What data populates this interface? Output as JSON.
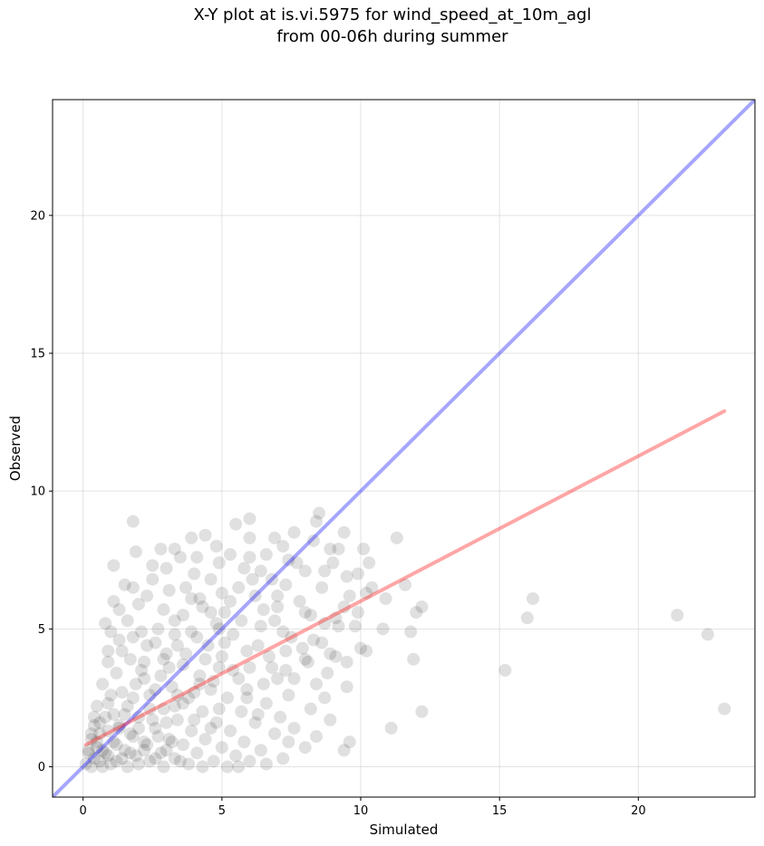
{
  "chart_data": {
    "type": "scatter",
    "title_lines": [
      "X-Y plot at is.vi.5975 for wind_speed_at_10m_agl",
      "from 00-06h during summer"
    ],
    "xlabel": "Simulated",
    "ylabel": "Observed",
    "xlim": [
      -1.1,
      24.2
    ],
    "ylim": [
      -1.1,
      24.2
    ],
    "x_ticks": [
      0,
      5,
      10,
      15,
      20
    ],
    "y_ticks": [
      0,
      5,
      10,
      15,
      20
    ],
    "grid": true,
    "point_color": "#000000",
    "point_alpha": 0.12,
    "series": [
      {
        "type": "scatter",
        "points": [
          [
            1.8,
            8.9
          ],
          [
            8.5,
            9.2
          ],
          [
            6.0,
            9.0
          ],
          [
            5.5,
            8.8
          ],
          [
            4.4,
            8.4
          ],
          [
            3.9,
            8.3
          ],
          [
            7.6,
            8.5
          ],
          [
            9.4,
            8.5
          ],
          [
            6.9,
            8.3
          ],
          [
            8.3,
            8.2
          ],
          [
            8.4,
            8.9
          ],
          [
            7.2,
            8.0
          ],
          [
            8.9,
            7.9
          ],
          [
            9.2,
            7.9
          ],
          [
            10.1,
            7.9
          ],
          [
            3.3,
            7.9
          ],
          [
            2.8,
            7.9
          ],
          [
            1.9,
            7.8
          ],
          [
            5.3,
            7.7
          ],
          [
            6.0,
            7.6
          ],
          [
            6.6,
            7.7
          ],
          [
            3.5,
            7.6
          ],
          [
            7.7,
            7.4
          ],
          [
            9.0,
            7.4
          ],
          [
            10.3,
            7.4
          ],
          [
            11.3,
            8.3
          ],
          [
            1.1,
            7.3
          ],
          [
            4.1,
            7.6
          ],
          [
            4.9,
            7.4
          ],
          [
            3.0,
            7.2
          ],
          [
            5.8,
            7.2
          ],
          [
            8.0,
            7.1
          ],
          [
            9.5,
            6.9
          ],
          [
            9.9,
            7.0
          ],
          [
            2.5,
            6.8
          ],
          [
            4.6,
            6.8
          ],
          [
            6.8,
            6.8
          ],
          [
            7.3,
            6.6
          ],
          [
            1.8,
            6.5
          ],
          [
            3.7,
            6.5
          ],
          [
            5.6,
            6.5
          ],
          [
            8.6,
            6.5
          ],
          [
            9.6,
            6.2
          ],
          [
            10.2,
            6.3
          ],
          [
            11.6,
            6.6
          ],
          [
            1.1,
            6.0
          ],
          [
            2.3,
            6.2
          ],
          [
            4.2,
            6.1
          ],
          [
            6.2,
            6.2
          ],
          [
            7.8,
            6.0
          ],
          [
            9.4,
            5.8
          ],
          [
            10.9,
            6.1
          ],
          [
            12.2,
            5.8
          ],
          [
            16.2,
            6.1
          ],
          [
            1.3,
            5.7
          ],
          [
            2.9,
            5.7
          ],
          [
            5.1,
            5.6
          ],
          [
            6.5,
            5.7
          ],
          [
            8.2,
            5.5
          ],
          [
            9.1,
            5.4
          ],
          [
            12.0,
            5.6
          ],
          [
            16.0,
            5.4
          ],
          [
            21.4,
            5.5
          ],
          [
            0.8,
            5.2
          ],
          [
            1.6,
            5.3
          ],
          [
            3.3,
            5.3
          ],
          [
            4.8,
            5.2
          ],
          [
            6.9,
            5.3
          ],
          [
            8.7,
            5.2
          ],
          [
            9.8,
            5.1
          ],
          [
            10.8,
            5.0
          ],
          [
            11.8,
            4.9
          ],
          [
            22.5,
            4.8
          ],
          [
            1.0,
            4.9
          ],
          [
            2.1,
            4.9
          ],
          [
            3.9,
            4.9
          ],
          [
            5.4,
            4.8
          ],
          [
            7.5,
            4.7
          ],
          [
            8.3,
            4.6
          ],
          [
            10.0,
            4.3
          ],
          [
            10.2,
            4.2
          ],
          [
            2.6,
            4.5
          ],
          [
            4.5,
            4.4
          ],
          [
            6.3,
            4.4
          ],
          [
            7.9,
            4.3
          ],
          [
            8.9,
            4.1
          ],
          [
            9.1,
            4.0
          ],
          [
            1.4,
            4.2
          ],
          [
            3.0,
            4.1
          ],
          [
            5.0,
            4.0
          ],
          [
            6.7,
            4.0
          ],
          [
            8.1,
            3.8
          ],
          [
            9.5,
            3.8
          ],
          [
            11.9,
            3.9
          ],
          [
            0.9,
            3.8
          ],
          [
            2.2,
            3.8
          ],
          [
            3.6,
            3.7
          ],
          [
            4.9,
            3.6
          ],
          [
            6.0,
            3.6
          ],
          [
            7.3,
            3.5
          ],
          [
            8.8,
            3.4
          ],
          [
            15.2,
            3.5
          ],
          [
            1.2,
            3.4
          ],
          [
            2.8,
            3.3
          ],
          [
            4.2,
            3.3
          ],
          [
            5.6,
            3.2
          ],
          [
            7.0,
            3.2
          ],
          [
            8.4,
            3.0
          ],
          [
            9.5,
            2.9
          ],
          [
            0.7,
            3.0
          ],
          [
            1.9,
            3.0
          ],
          [
            3.2,
            2.9
          ],
          [
            4.6,
            2.8
          ],
          [
            5.9,
            2.8
          ],
          [
            7.4,
            2.6
          ],
          [
            8.7,
            2.5
          ],
          [
            1.0,
            2.6
          ],
          [
            2.4,
            2.6
          ],
          [
            3.8,
            2.5
          ],
          [
            5.2,
            2.5
          ],
          [
            6.6,
            2.3
          ],
          [
            8.2,
            2.1
          ],
          [
            0.5,
            2.2
          ],
          [
            1.6,
            2.2
          ],
          [
            2.9,
            2.1
          ],
          [
            4.3,
            2.0
          ],
          [
            5.7,
            2.0
          ],
          [
            7.1,
            1.8
          ],
          [
            12.2,
            2.0
          ],
          [
            23.1,
            2.1
          ],
          [
            0.8,
            1.8
          ],
          [
            2.0,
            1.8
          ],
          [
            3.4,
            1.7
          ],
          [
            4.8,
            1.6
          ],
          [
            6.2,
            1.6
          ],
          [
            7.6,
            1.4
          ],
          [
            8.9,
            1.7
          ],
          [
            0.4,
            1.5
          ],
          [
            1.3,
            1.5
          ],
          [
            2.6,
            1.4
          ],
          [
            3.9,
            1.3
          ],
          [
            5.3,
            1.3
          ],
          [
            6.9,
            1.2
          ],
          [
            8.4,
            1.1
          ],
          [
            11.1,
            1.4
          ],
          [
            0.6,
            1.2
          ],
          [
            1.8,
            1.1
          ],
          [
            3.1,
            1.0
          ],
          [
            4.4,
            1.0
          ],
          [
            5.8,
            0.9
          ],
          [
            7.4,
            0.9
          ],
          [
            9.6,
            0.9
          ],
          [
            0.3,
            1.0
          ],
          [
            1.1,
            0.9
          ],
          [
            2.3,
            0.8
          ],
          [
            3.6,
            0.8
          ],
          [
            5.0,
            0.7
          ],
          [
            6.4,
            0.6
          ],
          [
            8.0,
            0.7
          ],
          [
            9.4,
            0.6
          ],
          [
            0.5,
            0.7
          ],
          [
            1.5,
            0.6
          ],
          [
            2.8,
            0.5
          ],
          [
            4.1,
            0.5
          ],
          [
            5.5,
            0.4
          ],
          [
            7.2,
            0.3
          ],
          [
            0.2,
            0.5
          ],
          [
            0.9,
            0.4
          ],
          [
            1.9,
            0.4
          ],
          [
            3.3,
            0.3
          ],
          [
            4.7,
            0.2
          ],
          [
            6.0,
            0.2
          ],
          [
            0.4,
            0.3
          ],
          [
            1.2,
            0.2
          ],
          [
            2.4,
            0.2
          ],
          [
            3.8,
            0.1
          ],
          [
            5.2,
            0.0
          ],
          [
            6.6,
            0.1
          ],
          [
            0.1,
            0.1
          ],
          [
            0.7,
            0.0
          ],
          [
            1.6,
            0.0
          ],
          [
            2.9,
            0.0
          ],
          [
            4.3,
            0.0
          ],
          [
            5.6,
            0.0
          ],
          [
            0.3,
            0.0
          ],
          [
            1.0,
            0.1
          ],
          [
            2.0,
            0.1
          ],
          [
            3.5,
            0.2
          ],
          [
            0.6,
            0.2
          ],
          [
            1.4,
            0.3
          ],
          [
            2.6,
            0.3
          ],
          [
            0.2,
            0.6
          ],
          [
            0.8,
            0.5
          ],
          [
            1.7,
            0.5
          ],
          [
            3.0,
            0.6
          ],
          [
            0.5,
            0.9
          ],
          [
            1.2,
            0.8
          ],
          [
            2.2,
            0.9
          ],
          [
            0.9,
            1.3
          ],
          [
            1.7,
            1.2
          ],
          [
            2.7,
            1.1
          ],
          [
            0.6,
            1.6
          ],
          [
            1.5,
            1.9
          ],
          [
            2.5,
            1.7
          ],
          [
            3.6,
            2.3
          ],
          [
            4.0,
            2.7
          ],
          [
            4.7,
            3.1
          ],
          [
            5.4,
            3.5
          ],
          [
            3.1,
            3.6
          ],
          [
            2.2,
            3.2
          ],
          [
            1.4,
            2.7
          ],
          [
            0.9,
            2.3
          ],
          [
            3.4,
            4.4
          ],
          [
            4.1,
            4.7
          ],
          [
            4.9,
            5.0
          ],
          [
            5.7,
            5.3
          ],
          [
            2.7,
            5.0
          ],
          [
            3.6,
            5.5
          ],
          [
            4.3,
            5.8
          ],
          [
            5.0,
            6.3
          ],
          [
            2.0,
            5.9
          ],
          [
            3.1,
            6.4
          ],
          [
            4.0,
            7.0
          ],
          [
            2.5,
            7.3
          ],
          [
            1.5,
            6.6
          ],
          [
            6.4,
            7.1
          ],
          [
            7.0,
            6.2
          ],
          [
            6.4,
            5.1
          ],
          [
            7.2,
            4.9
          ],
          [
            5.9,
            4.2
          ],
          [
            6.8,
            3.6
          ],
          [
            4.4,
            3.9
          ],
          [
            5.1,
            4.5
          ],
          [
            3.7,
            4.1
          ],
          [
            2.9,
            3.9
          ],
          [
            2.1,
            3.5
          ],
          [
            1.7,
            3.9
          ],
          [
            2.3,
            4.4
          ],
          [
            3.3,
            4.8
          ],
          [
            4.6,
            5.6
          ],
          [
            5.3,
            6.0
          ],
          [
            6.1,
            6.8
          ],
          [
            3.9,
            6.1
          ],
          [
            1.3,
            4.6
          ],
          [
            0.9,
            4.2
          ],
          [
            1.8,
            4.7
          ],
          [
            2.6,
            2.8
          ],
          [
            3.4,
            2.6
          ],
          [
            4.2,
            3.0
          ],
          [
            1.8,
            2.5
          ],
          [
            1.1,
            1.9
          ],
          [
            0.4,
            1.8
          ],
          [
            2.0,
            1.4
          ],
          [
            3.0,
            1.6
          ],
          [
            4.0,
            1.7
          ],
          [
            4.9,
            2.1
          ],
          [
            5.9,
            2.5
          ],
          [
            6.5,
            3.0
          ],
          [
            7.6,
            3.2
          ],
          [
            8.0,
            3.9
          ],
          [
            7.3,
            4.2
          ],
          [
            8.6,
            4.5
          ],
          [
            9.2,
            5.1
          ],
          [
            8.0,
            5.6
          ],
          [
            7.0,
            5.8
          ],
          [
            9.9,
            5.6
          ],
          [
            10.4,
            6.5
          ],
          [
            6.0,
            8.3
          ],
          [
            4.8,
            8.0
          ],
          [
            7.4,
            7.5
          ],
          [
            8.7,
            7.1
          ],
          [
            2.2,
            0.6
          ],
          [
            3.2,
            0.9
          ],
          [
            4.6,
            1.4
          ],
          [
            6.3,
            1.9
          ],
          [
            0.7,
            0.6
          ],
          [
            1.3,
            1.4
          ],
          [
            2.4,
            2.1
          ],
          [
            3.3,
            2.2
          ],
          [
            0.3,
            1.2
          ]
        ]
      },
      {
        "type": "line",
        "name": "",
        "color": "#0000ff",
        "alpha": 0.35,
        "points": [
          [
            -1.1,
            -1.1
          ],
          [
            24.2,
            24.2
          ]
        ]
      },
      {
        "type": "line",
        "name": "",
        "color": "#ff0000",
        "alpha": 0.35,
        "points": [
          [
            0.1,
            0.8
          ],
          [
            23.1,
            12.9
          ]
        ]
      }
    ]
  }
}
